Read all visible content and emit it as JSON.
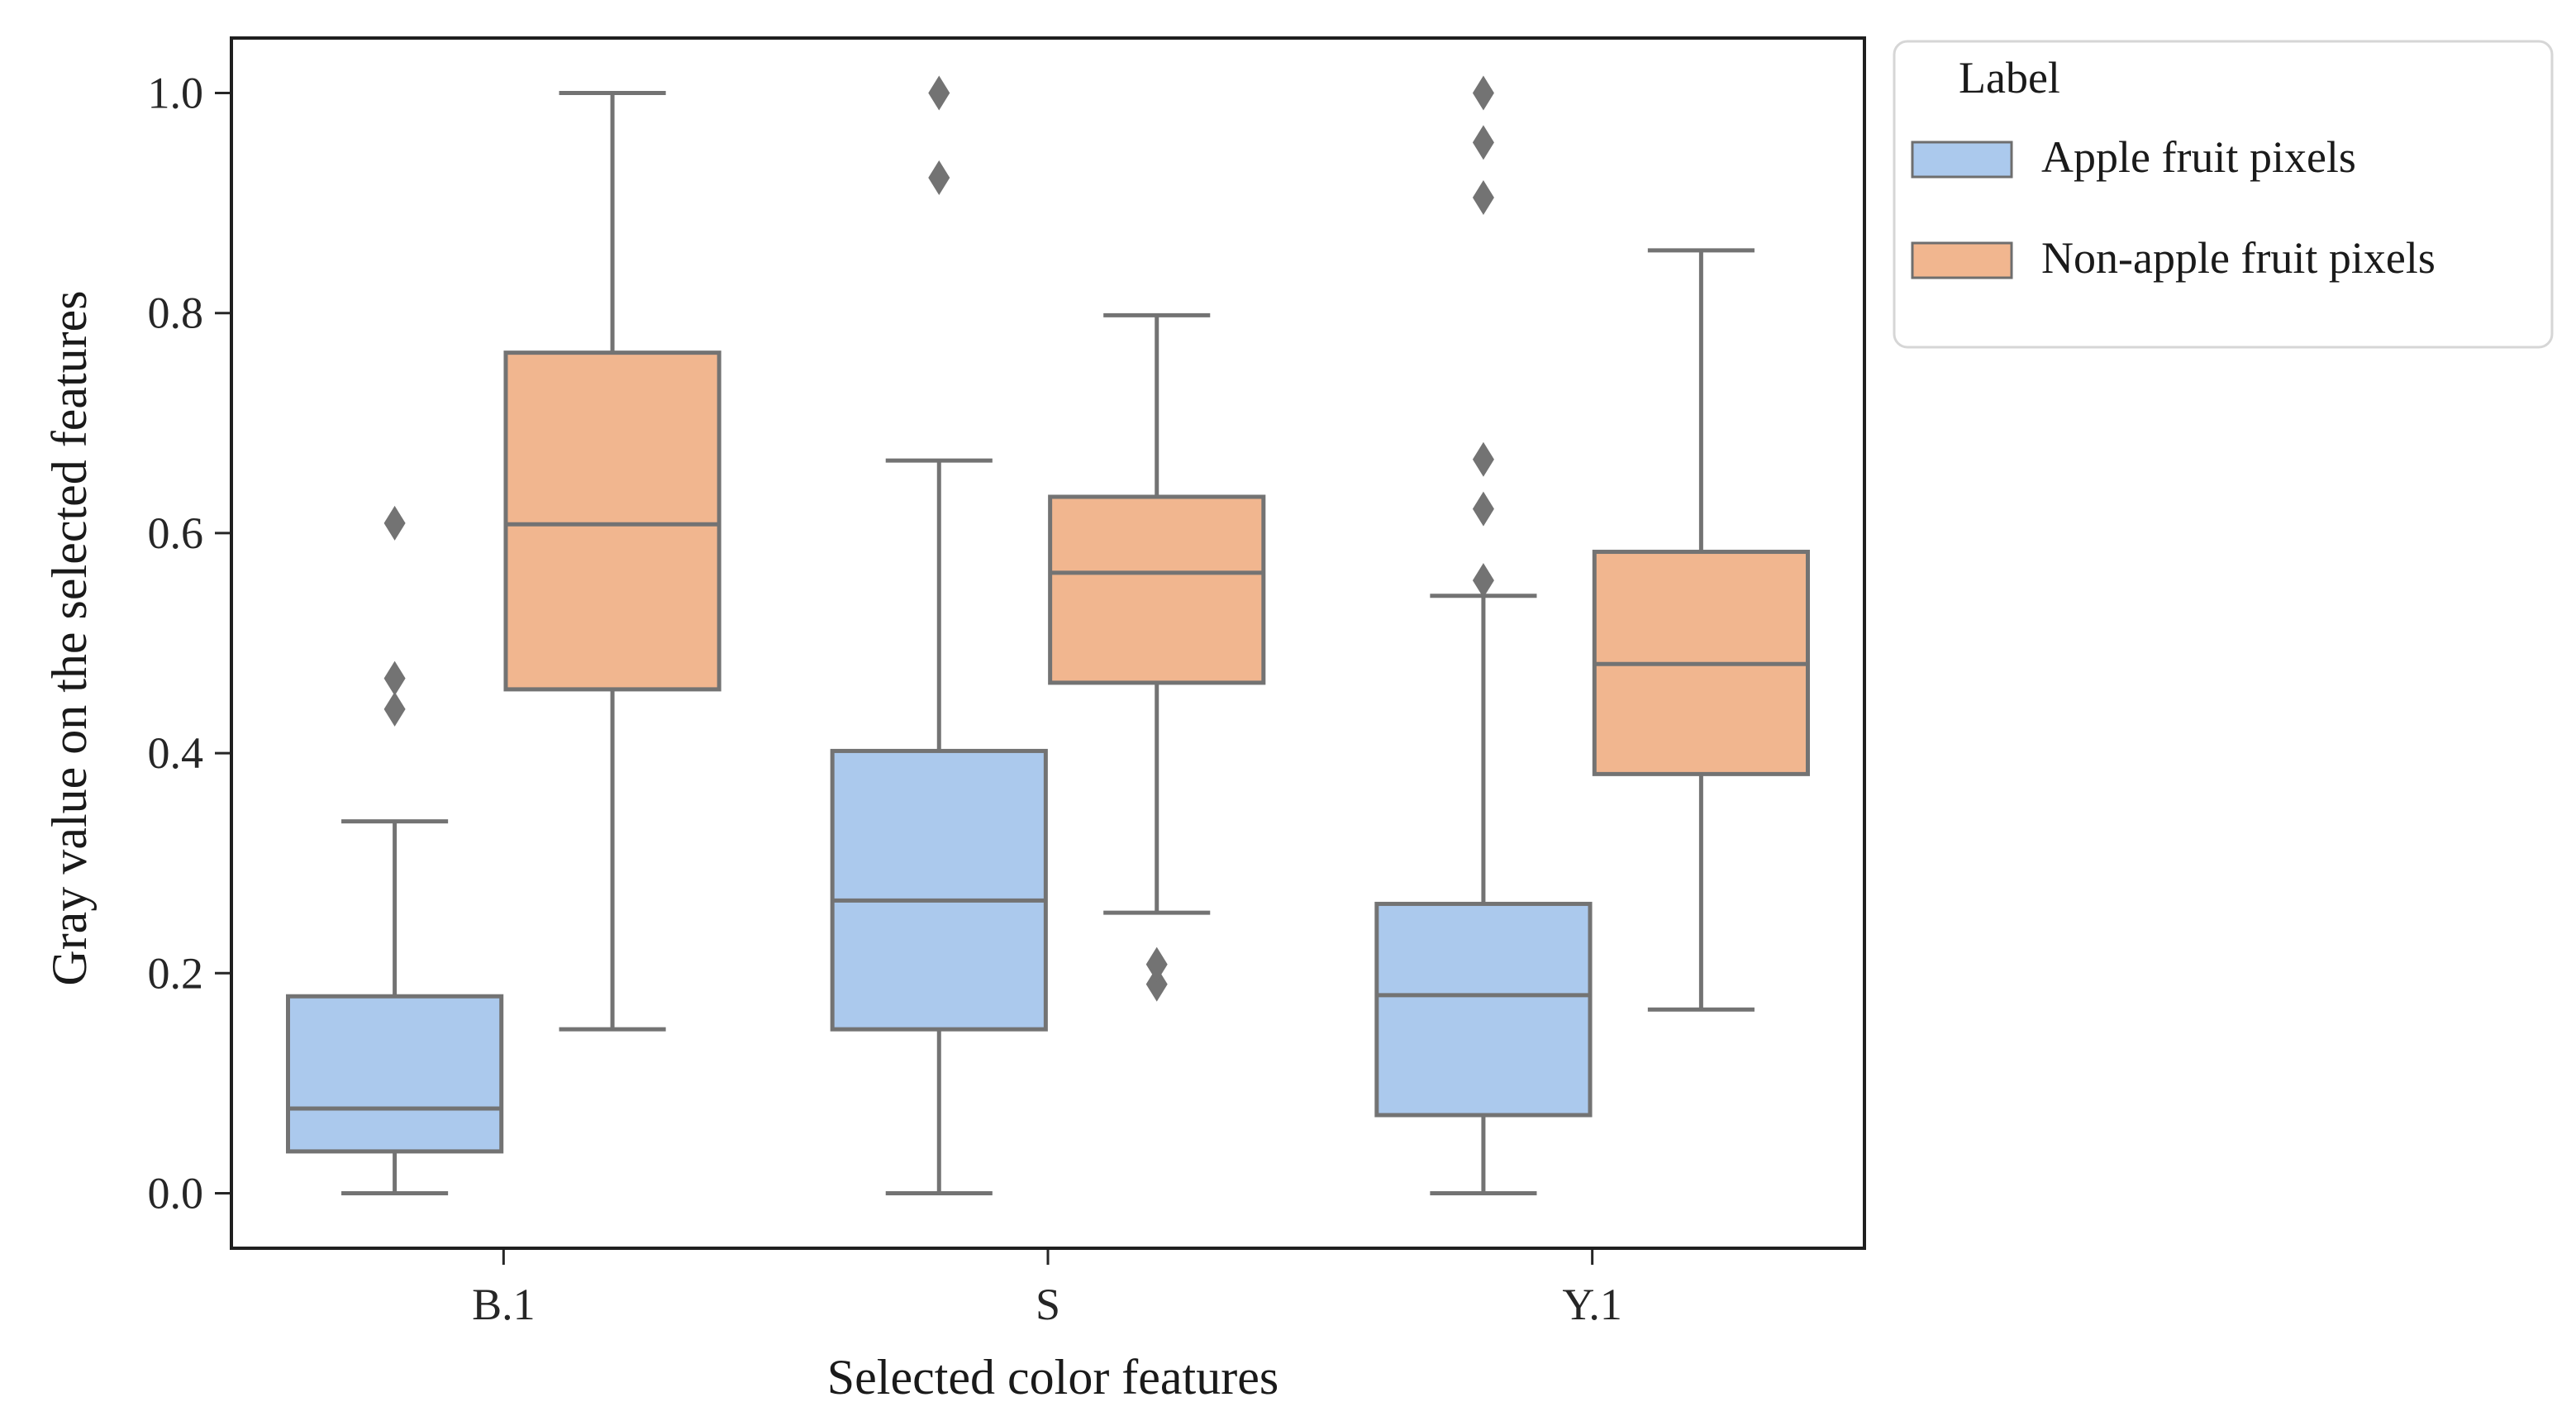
{
  "chart_data": {
    "type": "box",
    "title": "",
    "xlabel": "Selected color features",
    "ylabel": "Gray value on the selected features",
    "ylim": [
      -0.05,
      1.05
    ],
    "yticks": [
      "0.0",
      "0.2",
      "0.4",
      "0.6",
      "0.8",
      "1.0"
    ],
    "categories": [
      "B.1",
      "S",
      "Y.1"
    ],
    "grid": false,
    "legend": {
      "title": "Label",
      "placement": "outside-top-right",
      "entries": [
        "Apple fruit pixels",
        "Non-apple fruit pixels"
      ]
    },
    "series": [
      {
        "name": "Apple fruit pixels",
        "color": "#abc9ed",
        "boxes": [
          {
            "category": "B.1",
            "whisker_low": 0.0,
            "q1": 0.038,
            "median": 0.077,
            "q3": 0.179,
            "whisker_high": 0.338,
            "outliers": [
              0.44,
              0.468,
              0.609
            ]
          },
          {
            "category": "S",
            "whisker_low": 0.0,
            "q1": 0.149,
            "median": 0.266,
            "q3": 0.402,
            "whisker_high": 0.666,
            "outliers": [
              0.923,
              1.0
            ]
          },
          {
            "category": "Y.1",
            "whisker_low": 0.0,
            "q1": 0.071,
            "median": 0.18,
            "q3": 0.263,
            "whisker_high": 0.543,
            "outliers": [
              0.557,
              0.622,
              0.667,
              0.905,
              0.955,
              1.0
            ]
          }
        ]
      },
      {
        "name": "Non-apple fruit pixels",
        "color": "#f1b68f",
        "boxes": [
          {
            "category": "B.1",
            "whisker_low": 0.149,
            "q1": 0.458,
            "median": 0.608,
            "q3": 0.764,
            "whisker_high": 1.0,
            "outliers": []
          },
          {
            "category": "S",
            "whisker_low": 0.255,
            "q1": 0.464,
            "median": 0.564,
            "q3": 0.633,
            "whisker_high": 0.798,
            "outliers": [
              0.19,
              0.208
            ]
          },
          {
            "category": "Y.1",
            "whisker_low": 0.167,
            "q1": 0.381,
            "median": 0.481,
            "q3": 0.583,
            "whisker_high": 0.857,
            "outliers": []
          }
        ]
      }
    ]
  }
}
